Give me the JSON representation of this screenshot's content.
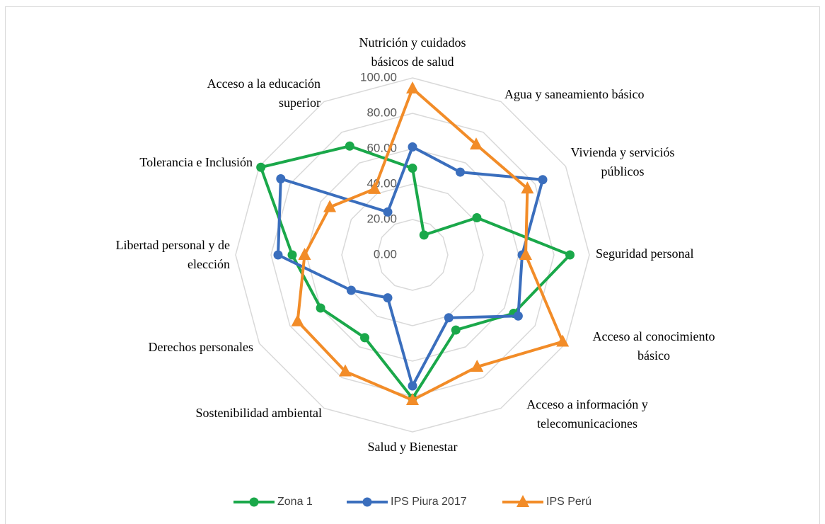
{
  "chart_data": {
    "type": "radar",
    "categories": [
      "Nutrición y cuidados básicos de salud",
      "Agua y saneamiento básico",
      "Vivienda y serviciós públicos",
      "Seguridad personal",
      "Acceso al conocimiento básico",
      "Acceso a información y telecomunicaciones",
      "Salud y Bienestar",
      "Sostenibilidad ambiental",
      "Derechos personales",
      "Libertad personal y de elección",
      "Tolerancia e Inclusión",
      "Acceso a la educación superior"
    ],
    "series": [
      {
        "name": "Zona 1",
        "color": "#1aa84a",
        "marker": "circle",
        "values": [
          49,
          13,
          42,
          89,
          66,
          49,
          81,
          54,
          60,
          68,
          99,
          71
        ]
      },
      {
        "name": "IPS Piura 2017",
        "color": "#3a6ebd",
        "marker": "circle",
        "values": [
          61,
          54,
          85,
          62,
          69,
          41,
          74,
          28,
          40,
          76,
          86,
          28
        ]
      },
      {
        "name": "IPS Perú",
        "color": "#f28c28",
        "marker": "triangle",
        "values": [
          94,
          72,
          75,
          64,
          98,
          73,
          82,
          76,
          75,
          61,
          54,
          43
        ]
      }
    ],
    "ylim": [
      0,
      100
    ],
    "yticks": [
      {
        "value": 0,
        "label": "0.00"
      },
      {
        "value": 20,
        "label": "20.00"
      },
      {
        "value": 40,
        "label": "40.00"
      },
      {
        "value": 60,
        "label": "60.00"
      },
      {
        "value": 80,
        "label": "80.00"
      },
      {
        "value": 100,
        "label": "100.00"
      }
    ],
    "grid": true,
    "legend": "bottom"
  }
}
